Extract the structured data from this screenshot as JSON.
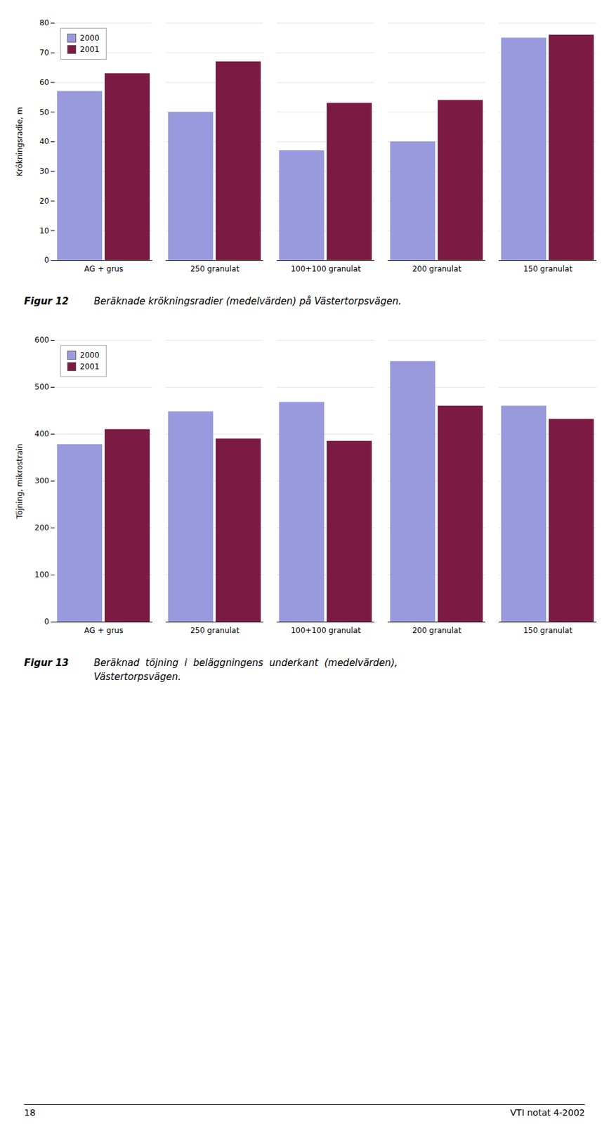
{
  "chart_data": [
    {
      "type": "bar",
      "categories": [
        "AG + grus",
        "250 granulat",
        "100+100 granulat",
        "200 granulat",
        "150 granulat"
      ],
      "series": [
        {
          "name": "2000",
          "color": "#9999dd",
          "values": [
            57,
            50,
            37,
            40,
            75
          ]
        },
        {
          "name": "2001",
          "color": "#7b1a42",
          "values": [
            63,
            67,
            53,
            54,
            76
          ]
        }
      ],
      "ylabel": "Krökningsradie, m",
      "ylim": [
        0,
        80
      ],
      "yticks": [
        0,
        10,
        20,
        30,
        40,
        50,
        60,
        70,
        80
      ],
      "grid": true,
      "legend": "upper left",
      "annotations": [
        "Figur 12",
        "Beräknade krökningsradier (medelvärden) på Västertorpsvägen."
      ]
    },
    {
      "type": "bar",
      "categories": [
        "AG + grus",
        "250 granulat",
        "100+100 granulat",
        "200 granulat",
        "150 granulat"
      ],
      "series": [
        {
          "name": "2000",
          "color": "#9999dd",
          "values": [
            378,
            448,
            468,
            555,
            460
          ]
        },
        {
          "name": "2001",
          "color": "#7b1a42",
          "values": [
            410,
            390,
            385,
            460,
            432
          ]
        }
      ],
      "ylabel": "Töjning, mikrostrain",
      "ylim": [
        0,
        600
      ],
      "yticks": [
        0,
        100,
        200,
        300,
        400,
        500,
        600
      ],
      "grid": true,
      "legend": "upper left",
      "annotations": [
        "Figur 13",
        "Beräknad  töjning  i  beläggningens  underkant  (medelvärden),",
        "Västertorpsvägen."
      ]
    }
  ],
  "annotations": [
    "18",
    "VTI notat 4-2002"
  ]
}
